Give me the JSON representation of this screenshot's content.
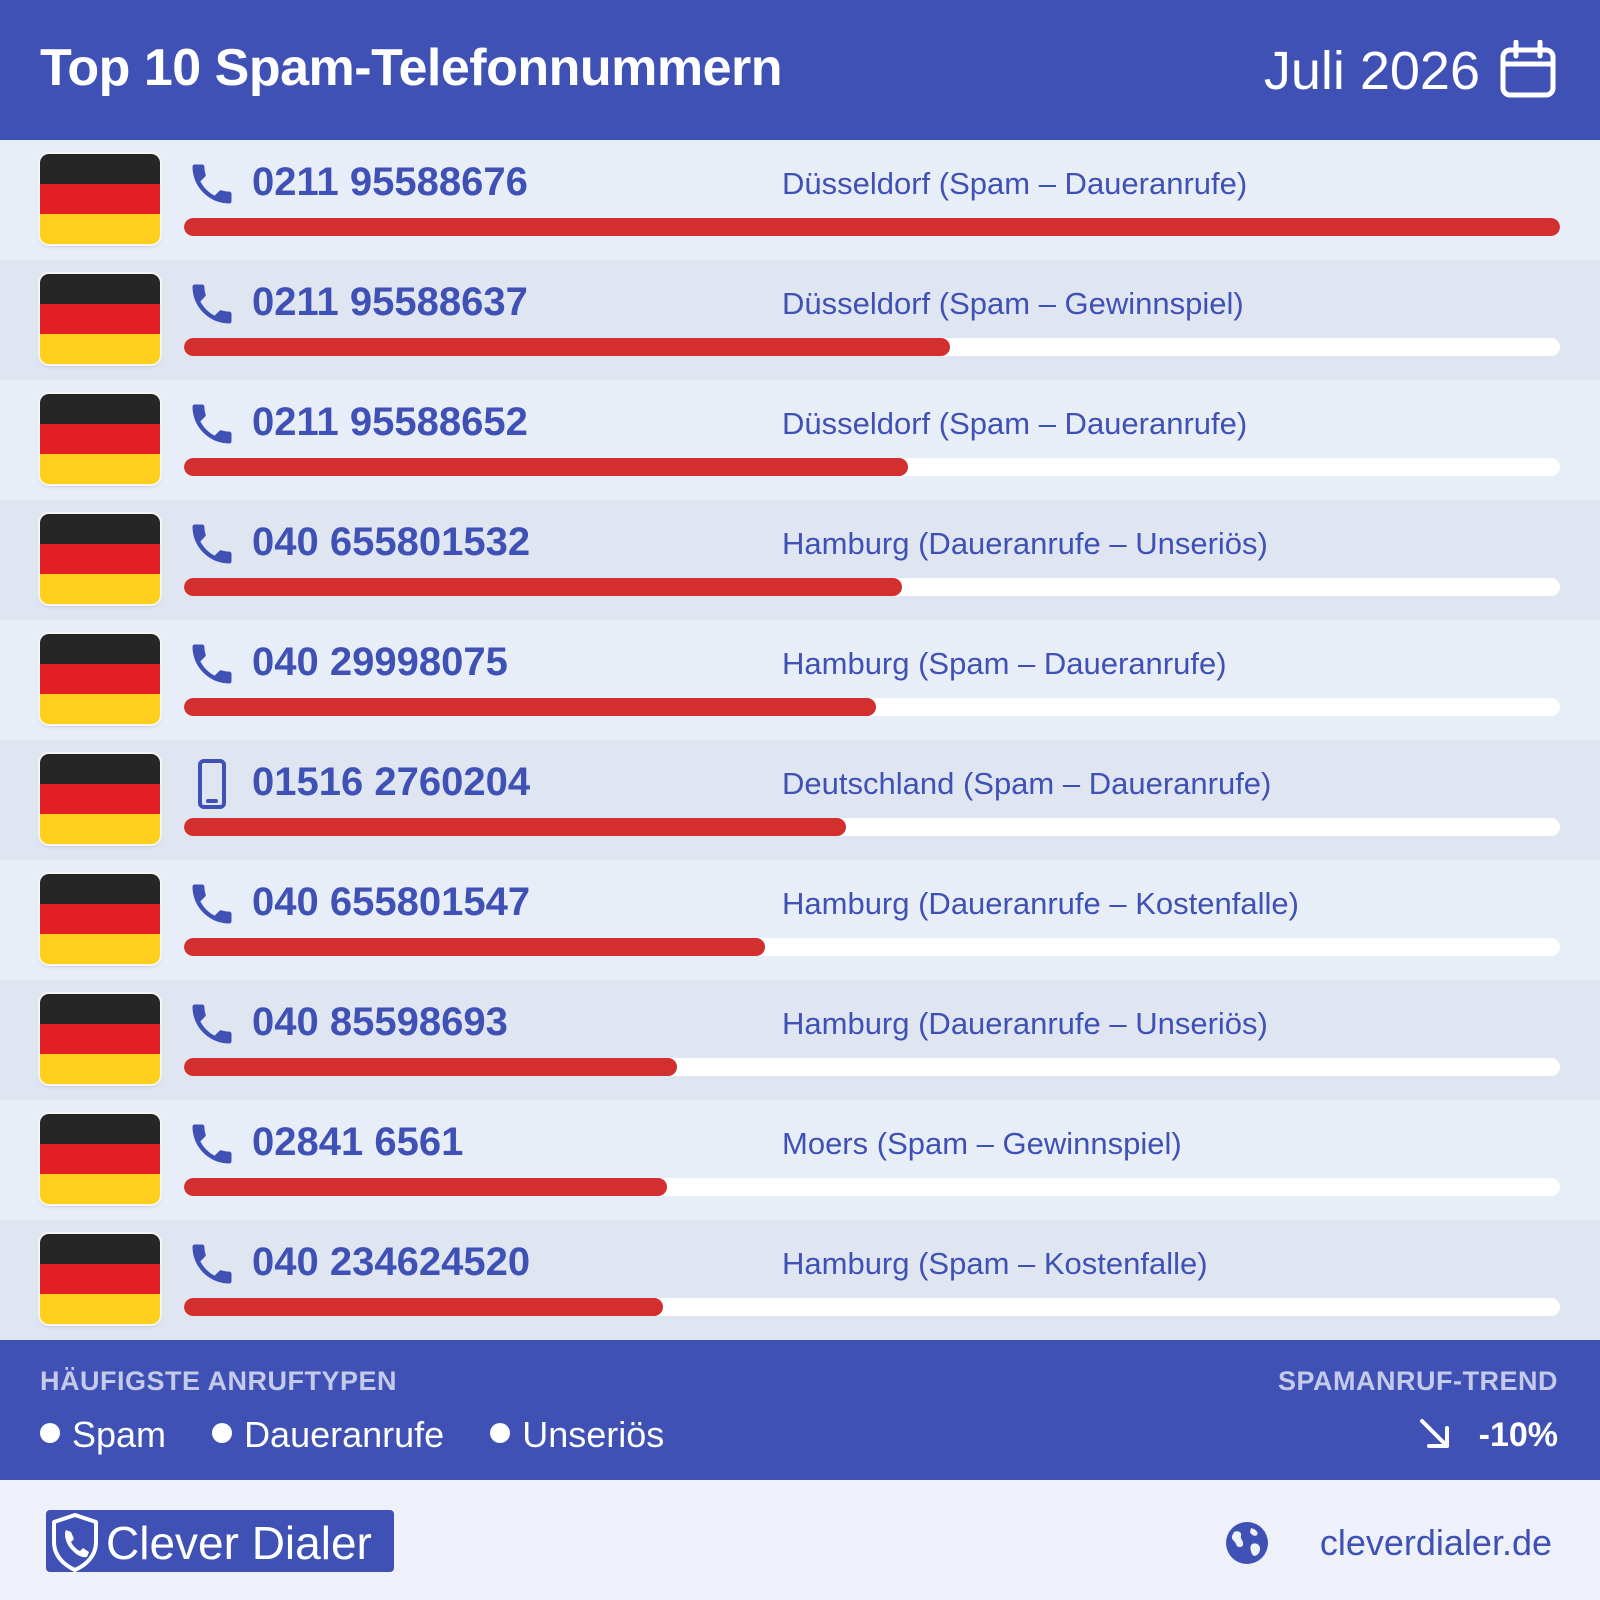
{
  "header": {
    "title": "Top 10 Spam-Telefonnummern",
    "date": "Juli 2026",
    "icon": "calendar-icon"
  },
  "colors": {
    "primary": "#3f51b5",
    "bar": "#d32f2f"
  },
  "rows": [
    {
      "number": "0211 95588676",
      "desc": "Düsseldorf (Spam – Daueranrufe)",
      "icon": "phone-icon",
      "level": 1.0
    },
    {
      "number": "0211 95588637",
      "desc": "Düsseldorf (Spam – Gewinnspiel)",
      "icon": "phone-icon",
      "level": 0.557
    },
    {
      "number": "0211 95588652",
      "desc": "Düsseldorf (Spam – Daueranrufe)",
      "icon": "phone-icon",
      "level": 0.526
    },
    {
      "number": "040 655801532",
      "desc": "Hamburg (Daueranrufe – Unseriös)",
      "icon": "phone-icon",
      "level": 0.522
    },
    {
      "number": "040 29998075",
      "desc": "Hamburg (Spam – Daueranrufe)",
      "icon": "phone-icon",
      "level": 0.503
    },
    {
      "number": "01516 2760204",
      "desc": "Deutschland (Spam – Daueranrufe)",
      "icon": "mobile-icon",
      "level": 0.481
    },
    {
      "number": "040 655801547",
      "desc": "Hamburg (Daueranrufe – Kostenfalle)",
      "icon": "phone-icon",
      "level": 0.422
    },
    {
      "number": "040 85598693",
      "desc": "Hamburg (Daueranrufe – Unseriös)",
      "icon": "phone-icon",
      "level": 0.358
    },
    {
      "number": "02841 6561",
      "desc": "Moers (Spam – Gewinnspiel)",
      "icon": "phone-icon",
      "level": 0.351
    },
    {
      "number": "040 234624520",
      "desc": "Hamburg (Spam – Kostenfalle)",
      "icon": "phone-icon",
      "level": 0.348
    }
  ],
  "stats": {
    "types_label": "HÄUFIGSTE ANRUFTYPEN",
    "types": [
      "Spam",
      "Daueranrufe",
      "Unseriös"
    ],
    "trend_label": "SPAMANRUF-TREND",
    "trend_value": "-10%",
    "trend_icon": "arrow-down-right-icon"
  },
  "footer": {
    "brand": "Clever Dialer",
    "brand_icon": "shield-phone-icon",
    "site": "cleverdialer.de",
    "site_icon": "globe-icon"
  }
}
